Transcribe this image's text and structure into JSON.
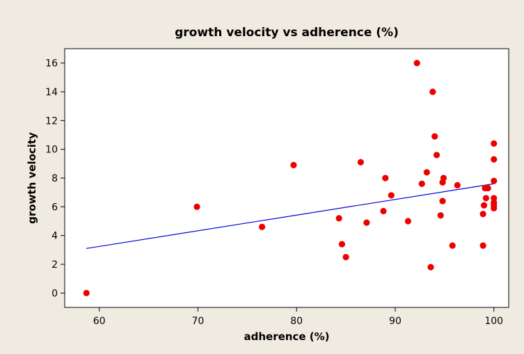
{
  "chart_data": {
    "type": "scatter",
    "title": "growth velocity vs adherence (%)",
    "xlabel": "adherence (%)",
    "ylabel": "growth velocity",
    "xlim": [
      56.5,
      101.5
    ],
    "ylim": [
      -1,
      17
    ],
    "xticks": [
      "60",
      "70",
      "80",
      "90",
      "100"
    ],
    "yticks": [
      "0",
      "2",
      "4",
      "6",
      "8",
      "10",
      "12",
      "14",
      "16"
    ],
    "grid": false,
    "legend": "none",
    "colors": {
      "outer_background": "#f0ebe1",
      "plot_background": "#ffffff",
      "point": "#ee0000",
      "fit_line": "#0000dd"
    },
    "series": [
      {
        "points": [
          [
            58.7,
            0.0
          ],
          [
            69.9,
            6.0
          ],
          [
            76.5,
            4.6
          ],
          [
            79.7,
            8.9
          ],
          [
            84.3,
            5.2
          ],
          [
            84.6,
            3.4
          ],
          [
            85.0,
            2.5
          ],
          [
            86.5,
            9.1
          ],
          [
            87.1,
            4.9
          ],
          [
            88.8,
            5.7
          ],
          [
            89.0,
            8.0
          ],
          [
            89.6,
            6.8
          ],
          [
            91.3,
            5.0
          ],
          [
            92.2,
            16.0
          ],
          [
            92.7,
            7.6
          ],
          [
            93.2,
            8.4
          ],
          [
            93.6,
            1.8
          ],
          [
            93.8,
            14.0
          ],
          [
            94.0,
            10.9
          ],
          [
            94.2,
            9.6
          ],
          [
            94.6,
            5.4
          ],
          [
            94.8,
            7.7
          ],
          [
            94.8,
            6.4
          ],
          [
            94.9,
            8.0
          ],
          [
            95.8,
            3.3
          ],
          [
            96.3,
            7.5
          ],
          [
            98.9,
            3.3
          ],
          [
            98.9,
            5.5
          ],
          [
            99.0,
            6.1
          ],
          [
            99.1,
            7.3
          ],
          [
            99.2,
            6.6
          ],
          [
            99.4,
            7.3
          ],
          [
            100.0,
            10.4
          ],
          [
            100.0,
            9.3
          ],
          [
            100.0,
            7.8
          ],
          [
            100.0,
            6.6
          ],
          [
            100.0,
            6.3
          ],
          [
            100.0,
            6.1
          ],
          [
            100.0,
            5.9
          ]
        ]
      }
    ],
    "fit_line": {
      "x": [
        58.7,
        100.0
      ],
      "y": [
        3.1,
        7.6
      ]
    }
  }
}
